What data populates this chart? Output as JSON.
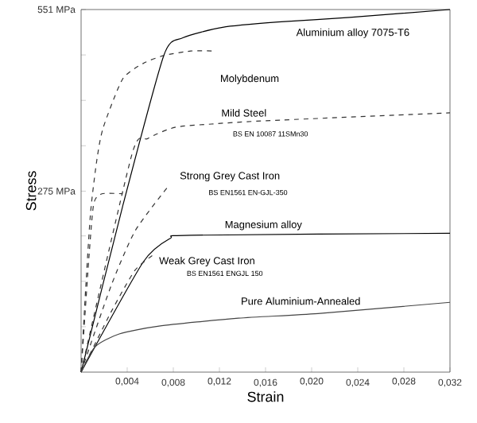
{
  "chart_data": {
    "type": "line",
    "xlabel": "Strain",
    "ylabel": "Stress",
    "xlim": [
      0,
      0.032
    ],
    "ylim": [
      0,
      551
    ],
    "xticks": [
      {
        "value": 0.004,
        "label": "0,004"
      },
      {
        "value": 0.008,
        "label": "0,008"
      },
      {
        "value": 0.012,
        "label": "0,012"
      },
      {
        "value": 0.016,
        "label": "0,016"
      },
      {
        "value": 0.02,
        "label": "0,020"
      },
      {
        "value": 0.024,
        "label": "0,024"
      },
      {
        "value": 0.028,
        "label": "0,028"
      },
      {
        "value": 0.032,
        "label": "0,032"
      }
    ],
    "yticks": [
      {
        "value": 69,
        "label": null
      },
      {
        "value": 138,
        "label": null
      },
      {
        "value": 207,
        "label": null
      },
      {
        "value": 275,
        "label": "275 MPa"
      },
      {
        "value": 344,
        "label": null
      },
      {
        "value": 413,
        "label": null
      },
      {
        "value": 482,
        "label": null
      },
      {
        "value": 551,
        "label": "551 MPa"
      }
    ],
    "grid": false,
    "legend": false,
    "marker": "none",
    "series": [
      {
        "name": "Aluminium alloy 7075-T6",
        "color": "#000000",
        "line_style": "solid",
        "x": [
          0,
          0.00359,
          0.00717,
          0.00883,
          0.01228,
          0.0171,
          0.0233,
          0.032
        ],
        "values": [
          0,
          251,
          481,
          508,
          524,
          532,
          539,
          551
        ]
      },
      {
        "name": "Molybdenum",
        "color": "#333333",
        "line_style": "dashed",
        "x": [
          0,
          0.00041,
          0.00083,
          0.00138,
          0.00193,
          0.00359,
          0.00538,
          0.00717,
          0.00952,
          0.01159
        ],
        "values": [
          0,
          131,
          244,
          324,
          372,
          445,
          469,
          481,
          488,
          488
        ]
      },
      {
        "name": "Mild Steel",
        "color": "#333333",
        "line_style": "dashed",
        "x": [
          0,
          0.00441,
          0.00579,
          0.00814,
          0.01131,
          0.016,
          0.032
        ],
        "values": [
          0,
          331,
          355,
          372,
          377,
          382,
          394
        ]
      },
      {
        "name": "Strong Grey Cast Iron",
        "color": "#333333",
        "line_style": "dashed",
        "x": [
          0,
          0.0026,
          0.0047,
          0.00759
        ],
        "values": [
          0,
          131,
          215,
          283
        ]
      },
      {
        "color": "#333333",
        "line_style": "dashed",
        "x": [
          0,
          0.0007,
          0.0011,
          0.0018,
          0.0036
        ],
        "values": [
          0,
          179,
          256,
          271,
          271
        ]
      },
      {
        "name": "Magnesium alloy",
        "color": "#000000",
        "line_style": "solid",
        "x": [
          0,
          0.00538,
          0.00772,
          0.00952,
          0.032
        ],
        "values": [
          0,
          167,
          203,
          208,
          211
        ]
      },
      {
        "name": "Weak Grey Cast Iron",
        "color": "#333333",
        "line_style": "dashed",
        "x": [
          0,
          0.00262,
          0.00469,
          0.00634
        ],
        "values": [
          0,
          92,
          155,
          179
        ]
      },
      {
        "name": "Pure Aluminium-Annealed",
        "color": "#444444",
        "line_style": "solid",
        "x": [
          0,
          0.00124,
          0.00331,
          0.00676,
          0.01365,
          0.02055,
          0.032
        ],
        "values": [
          0,
          39,
          58,
          70,
          82,
          89,
          106
        ]
      }
    ],
    "annotations": [
      "BS EN 10087 11SMn30",
      "BS EN1561 EN-GJL-350",
      "BS EN1561 ENGJL 150"
    ]
  }
}
